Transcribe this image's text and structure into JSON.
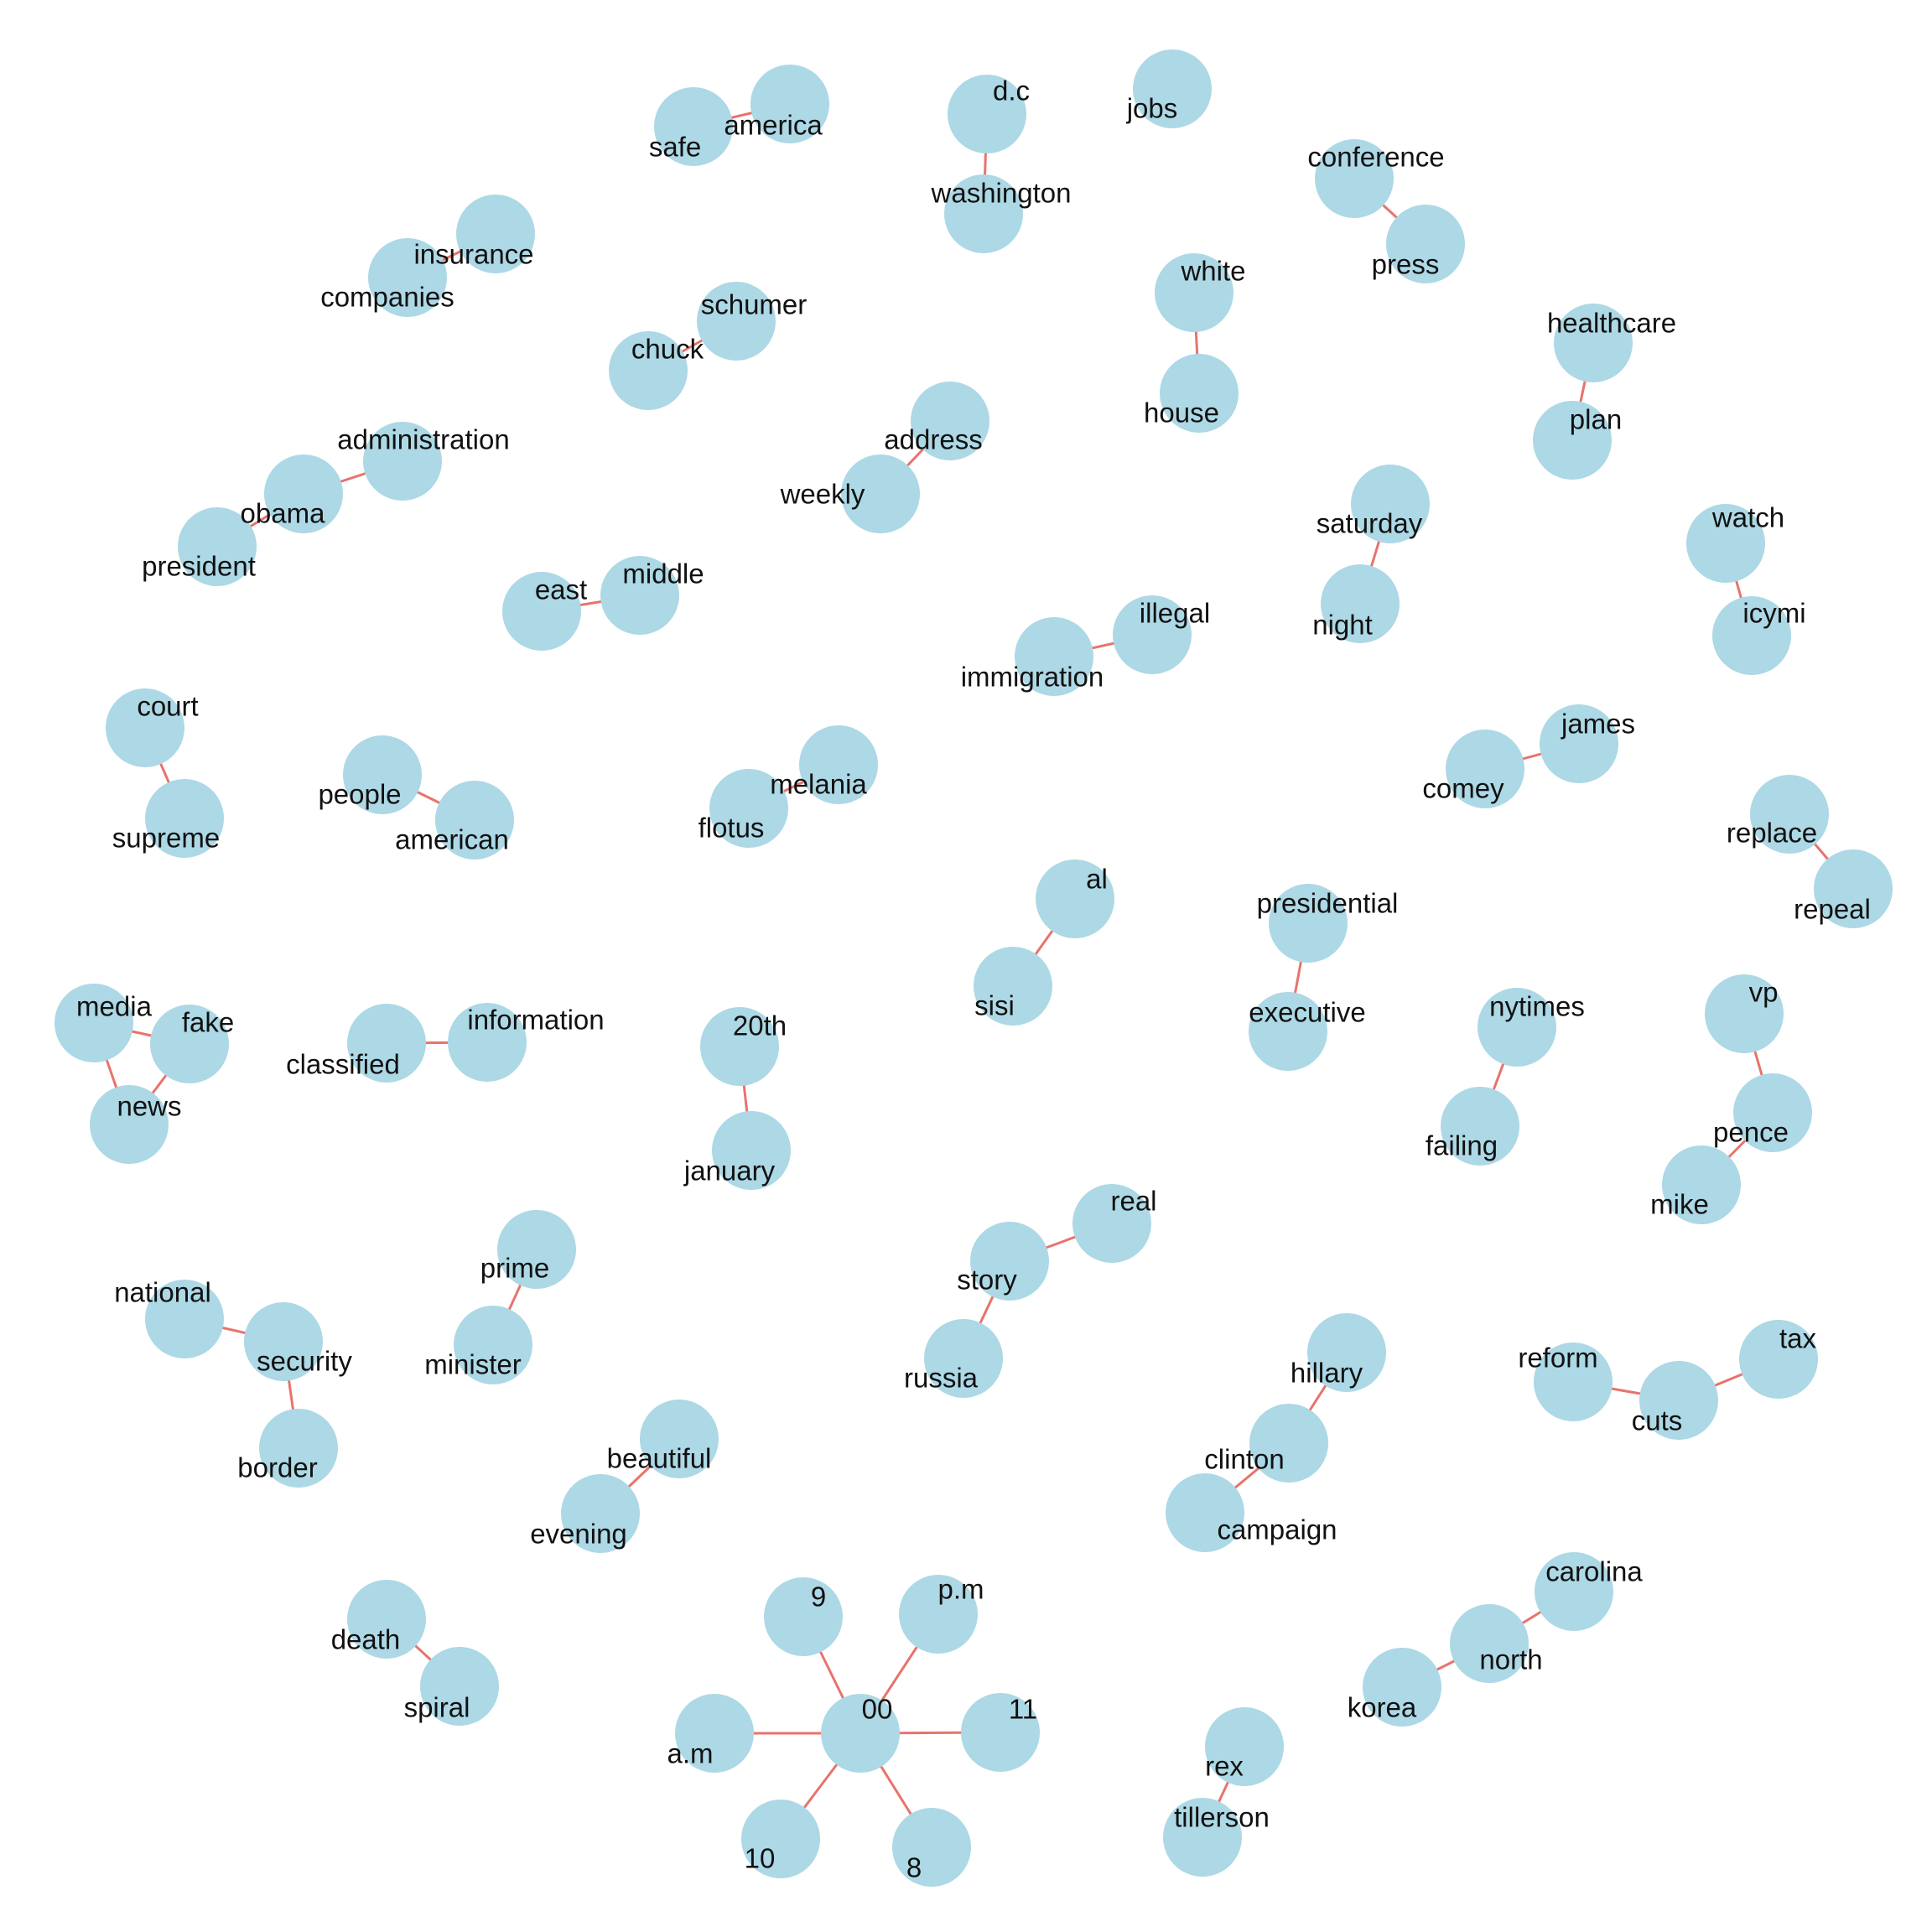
{
  "words": [
    "jobs",
    "d.c",
    "washington",
    "america",
    "safe",
    "conference",
    "press",
    "insurance",
    "companies",
    "schumer",
    "chuck",
    "white",
    "house",
    "healthcare",
    "plan",
    "administration",
    "obama",
    "president",
    "address",
    "weekly",
    "saturday",
    "night",
    "watch",
    "icymi",
    "middle",
    "east",
    "illegal",
    "immigration",
    "court",
    "supreme",
    "people",
    "american",
    "melania",
    "flotus",
    "james",
    "comey",
    "replace",
    "repeal",
    "al",
    "sisi",
    "presidential",
    "executive",
    "media",
    "fake",
    "news",
    "information",
    "classified",
    "20th",
    "january",
    "nytimes",
    "failing",
    "vp",
    "pence",
    "mike",
    "real",
    "story",
    "russia",
    "prime",
    "minister",
    "national",
    "security",
    "border",
    "hillary",
    "clinton",
    "campaign",
    "tax",
    "reform",
    "cuts",
    "beautiful",
    "evening",
    "carolina",
    "north",
    "korea",
    "9",
    "p.m",
    "00",
    "11",
    "a.m",
    "10",
    "8",
    "death",
    "spiral",
    "rex",
    "tillerson"
  ],
  "edges": [
    [
      "d.c",
      "washington"
    ],
    [
      "america",
      "safe"
    ],
    [
      "conference",
      "press"
    ],
    [
      "insurance",
      "companies"
    ],
    [
      "schumer",
      "chuck"
    ],
    [
      "white",
      "house"
    ],
    [
      "healthcare",
      "plan"
    ],
    [
      "administration",
      "obama"
    ],
    [
      "obama",
      "president"
    ],
    [
      "address",
      "weekly"
    ],
    [
      "saturday",
      "night"
    ],
    [
      "watch",
      "icymi"
    ],
    [
      "middle",
      "east"
    ],
    [
      "illegal",
      "immigration"
    ],
    [
      "court",
      "supreme"
    ],
    [
      "people",
      "american"
    ],
    [
      "melania",
      "flotus"
    ],
    [
      "james",
      "comey"
    ],
    [
      "replace",
      "repeal"
    ],
    [
      "al",
      "sisi"
    ],
    [
      "presidential",
      "executive"
    ],
    [
      "media",
      "fake"
    ],
    [
      "media",
      "news"
    ],
    [
      "fake",
      "news"
    ],
    [
      "information",
      "classified"
    ],
    [
      "20th",
      "january"
    ],
    [
      "nytimes",
      "failing"
    ],
    [
      "vp",
      "pence"
    ],
    [
      "pence",
      "mike"
    ],
    [
      "real",
      "story"
    ],
    [
      "story",
      "russia"
    ],
    [
      "prime",
      "minister"
    ],
    [
      "national",
      "security"
    ],
    [
      "security",
      "border"
    ],
    [
      "hillary",
      "clinton"
    ],
    [
      "clinton",
      "campaign"
    ],
    [
      "tax",
      "cuts"
    ],
    [
      "reform",
      "cuts"
    ],
    [
      "beautiful",
      "evening"
    ],
    [
      "carolina",
      "north"
    ],
    [
      "north",
      "korea"
    ],
    [
      "9",
      "00"
    ],
    [
      "p.m",
      "00"
    ],
    [
      "11",
      "00"
    ],
    [
      "a.m",
      "00"
    ],
    [
      "10",
      "00"
    ],
    [
      "8",
      "00"
    ],
    [
      "death",
      "spiral"
    ],
    [
      "rex",
      "tillerson"
    ]
  ],
  "colors": {
    "node": "#add8e6",
    "edge": "#e8736c",
    "text": "#111111"
  }
}
